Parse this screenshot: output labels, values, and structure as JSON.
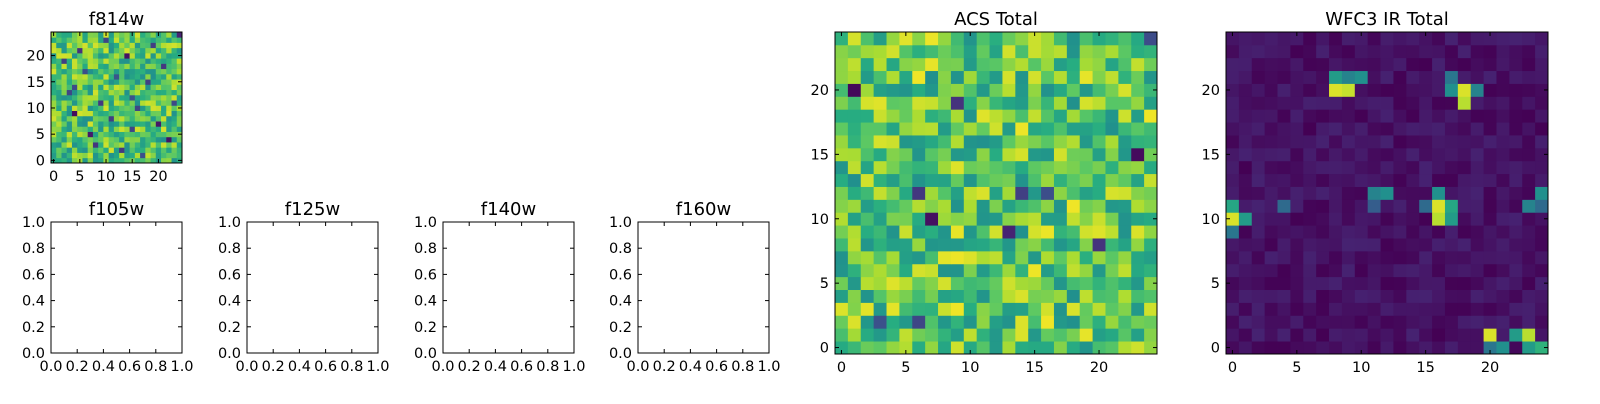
{
  "chart_data": [
    {
      "id": "f814w",
      "type": "heatmap",
      "title": "f814w",
      "colormap": "viridis",
      "grid_size": 25,
      "xlim": [
        -0.5,
        24.5
      ],
      "ylim": [
        -0.5,
        24.5
      ],
      "x_ticks": [
        0,
        5,
        10,
        15,
        20
      ],
      "y_ticks": [
        0,
        5,
        10,
        15,
        20
      ],
      "x_tick_labels": [
        "0",
        "5",
        "10",
        "15",
        "20"
      ],
      "y_tick_labels": [
        "0",
        "5",
        "10",
        "15",
        "20"
      ],
      "pattern": "noise",
      "seed": 11,
      "base": 0.72,
      "amp": 0.22,
      "dark_pixels": [
        [
          2,
          19
        ],
        [
          3,
          13
        ],
        [
          4,
          9
        ],
        [
          4,
          14
        ],
        [
          5,
          21
        ],
        [
          7,
          5
        ],
        [
          8,
          3
        ],
        [
          9,
          11
        ],
        [
          10,
          23
        ],
        [
          11,
          8
        ],
        [
          12,
          16
        ],
        [
          13,
          2
        ],
        [
          14,
          20
        ],
        [
          15,
          6
        ],
        [
          15,
          12
        ],
        [
          16,
          10
        ],
        [
          17,
          1
        ],
        [
          18,
          15
        ],
        [
          19,
          22
        ],
        [
          20,
          7
        ],
        [
          21,
          18
        ],
        [
          22,
          4
        ],
        [
          23,
          11
        ],
        [
          24,
          24
        ],
        [
          6,
          17
        ]
      ]
    },
    {
      "id": "f105w",
      "type": "empty",
      "title": "f105w",
      "xlim": [
        0,
        1
      ],
      "ylim": [
        0,
        1
      ],
      "x_tick_labels": [
        "0.0",
        "0.2",
        "0.4",
        "0.6",
        "0.8",
        "1.0"
      ],
      "y_tick_labels": [
        "0.0",
        "0.2",
        "0.4",
        "0.6",
        "0.8",
        "1.0"
      ]
    },
    {
      "id": "f125w",
      "type": "empty",
      "title": "f125w",
      "xlim": [
        0,
        1
      ],
      "ylim": [
        0,
        1
      ],
      "x_tick_labels": [
        "0.0",
        "0.2",
        "0.4",
        "0.6",
        "0.8",
        "1.0"
      ],
      "y_tick_labels": [
        "0.0",
        "0.2",
        "0.4",
        "0.6",
        "0.8",
        "1.0"
      ]
    },
    {
      "id": "f140w",
      "type": "empty",
      "title": "f140w",
      "xlim": [
        0,
        1
      ],
      "ylim": [
        0,
        1
      ],
      "x_tick_labels": [
        "0.0",
        "0.2",
        "0.4",
        "0.6",
        "0.8",
        "1.0"
      ],
      "y_tick_labels": [
        "0.0",
        "0.2",
        "0.4",
        "0.6",
        "0.8",
        "1.0"
      ]
    },
    {
      "id": "f160w",
      "type": "empty",
      "title": "f160w",
      "xlim": [
        0,
        1
      ],
      "ylim": [
        0,
        1
      ],
      "x_tick_labels": [
        "0.0",
        "0.2",
        "0.4",
        "0.6",
        "0.8",
        "1.0"
      ],
      "y_tick_labels": [
        "0.0",
        "0.2",
        "0.4",
        "0.6",
        "0.8",
        "1.0"
      ]
    },
    {
      "id": "acs-total",
      "type": "heatmap",
      "title": "ACS Total",
      "colormap": "viridis",
      "grid_size": 25,
      "xlim": [
        -0.5,
        24.5
      ],
      "ylim": [
        -0.5,
        24.5
      ],
      "x_ticks": [
        0,
        5,
        10,
        15,
        20
      ],
      "y_ticks": [
        0,
        5,
        10,
        15,
        20
      ],
      "x_tick_labels": [
        "0",
        "5",
        "10",
        "15",
        "20"
      ],
      "y_tick_labels": [
        "0",
        "5",
        "10",
        "15",
        "20"
      ],
      "pattern": "noise",
      "seed": 23,
      "base": 0.74,
      "amp": 0.24,
      "dark_pixels": [
        [
          1,
          20
        ],
        [
          9,
          19
        ],
        [
          24,
          24
        ],
        [
          6,
          12
        ],
        [
          14,
          12
        ],
        [
          16,
          12
        ],
        [
          7,
          10
        ],
        [
          3,
          2
        ],
        [
          6,
          2
        ],
        [
          23,
          15
        ],
        [
          20,
          8
        ],
        [
          13,
          9
        ]
      ]
    },
    {
      "id": "wfc3-ir-total",
      "type": "heatmap",
      "title": "WFC3 IR Total",
      "colormap": "viridis",
      "grid_size": 25,
      "xlim": [
        -0.5,
        24.5
      ],
      "ylim": [
        -0.5,
        24.5
      ],
      "x_ticks": [
        0,
        5,
        10,
        15,
        20
      ],
      "y_ticks": [
        0,
        5,
        10,
        15,
        20
      ],
      "x_tick_labels": [
        "0",
        "5",
        "10",
        "15",
        "20"
      ],
      "y_tick_labels": [
        "0",
        "5",
        "10",
        "15",
        "20"
      ],
      "pattern": "sources",
      "seed": 37,
      "base": 0.05,
      "amp": 0.05,
      "hot_pixels": [
        [
          8,
          20,
          0.95
        ],
        [
          9,
          20,
          0.92
        ],
        [
          8,
          21,
          0.55
        ],
        [
          9,
          21,
          0.45
        ],
        [
          10,
          21,
          0.5
        ],
        [
          18,
          20,
          0.95
        ],
        [
          18,
          19,
          0.9
        ],
        [
          17,
          20,
          0.5
        ],
        [
          19,
          20,
          0.45
        ],
        [
          17,
          21,
          0.4
        ],
        [
          16,
          11,
          0.95
        ],
        [
          16,
          10,
          0.9
        ],
        [
          17,
          11,
          0.6
        ],
        [
          17,
          10,
          0.55
        ],
        [
          15,
          11,
          0.35
        ],
        [
          16,
          12,
          0.5
        ],
        [
          0,
          10,
          0.95
        ],
        [
          0,
          11,
          0.6
        ],
        [
          1,
          10,
          0.55
        ],
        [
          0,
          9,
          0.4
        ],
        [
          11,
          12,
          0.45
        ],
        [
          12,
          12,
          0.5
        ],
        [
          11,
          11,
          0.3
        ],
        [
          4,
          11,
          0.35
        ],
        [
          24,
          12,
          0.5
        ],
        [
          23,
          11,
          0.45
        ],
        [
          24,
          11,
          0.35
        ],
        [
          20,
          1,
          0.95
        ],
        [
          23,
          1,
          0.9
        ],
        [
          22,
          1,
          0.55
        ],
        [
          21,
          0,
          0.5
        ],
        [
          23,
          0,
          0.55
        ],
        [
          24,
          0,
          0.65
        ],
        [
          20,
          0,
          0.4
        ]
      ]
    }
  ]
}
